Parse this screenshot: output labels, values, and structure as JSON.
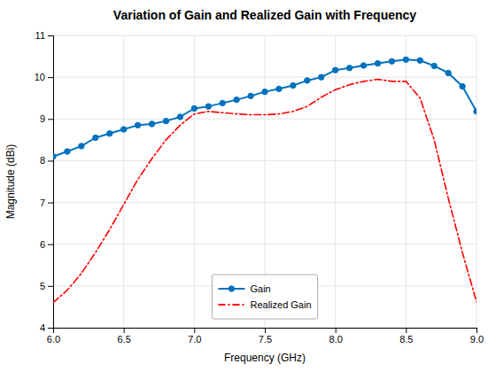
{
  "chart_data": {
    "type": "line",
    "title": "Variation of Gain and Realized Gain with Frequency",
    "xlabel": "Frequency (GHz)",
    "ylabel": "Magnitude (dBi)",
    "x": [
      6.0,
      6.1,
      6.2,
      6.3,
      6.4,
      6.5,
      6.6,
      6.7,
      6.8,
      6.9,
      7.0,
      7.1,
      7.2,
      7.3,
      7.4,
      7.5,
      7.6,
      7.7,
      7.8,
      7.9,
      8.0,
      8.1,
      8.2,
      8.3,
      8.4,
      8.5,
      8.6,
      8.7,
      8.8,
      8.9,
      9.0
    ],
    "series": [
      {
        "name": "Gain",
        "color": "#0072BD",
        "marker": "circle",
        "line_style": "solid",
        "values": [
          8.1,
          8.22,
          8.35,
          8.55,
          8.65,
          8.75,
          8.85,
          8.88,
          8.95,
          9.05,
          9.25,
          9.3,
          9.38,
          9.46,
          9.55,
          9.65,
          9.72,
          9.8,
          9.92,
          10.0,
          10.17,
          10.22,
          10.28,
          10.33,
          10.38,
          10.42,
          10.4,
          10.27,
          10.1,
          9.78,
          9.18
        ]
      },
      {
        "name": "Realized Gain",
        "color": "#FF0000",
        "line_style": "dashdot",
        "values": [
          4.6,
          4.9,
          5.3,
          5.8,
          6.35,
          6.95,
          7.55,
          8.05,
          8.5,
          8.85,
          9.12,
          9.18,
          9.15,
          9.12,
          9.1,
          9.1,
          9.12,
          9.18,
          9.3,
          9.52,
          9.7,
          9.82,
          9.9,
          9.95,
          9.9,
          9.9,
          9.5,
          8.5,
          7.1,
          5.8,
          4.62
        ]
      }
    ],
    "xlim": [
      6,
      9
    ],
    "ylim": [
      4,
      11
    ],
    "xticks": [
      {
        "value": 6,
        "label": "6.0"
      },
      6.5,
      {
        "value": 7,
        "label": "7.0"
      },
      7.5,
      {
        "value": 8,
        "label": "8.0"
      },
      8.5,
      {
        "value": 9,
        "label": "9.0"
      }
    ],
    "yticks": [
      4,
      5,
      6,
      7,
      8,
      9,
      10,
      11
    ],
    "grid": true,
    "legend": "lower center"
  }
}
